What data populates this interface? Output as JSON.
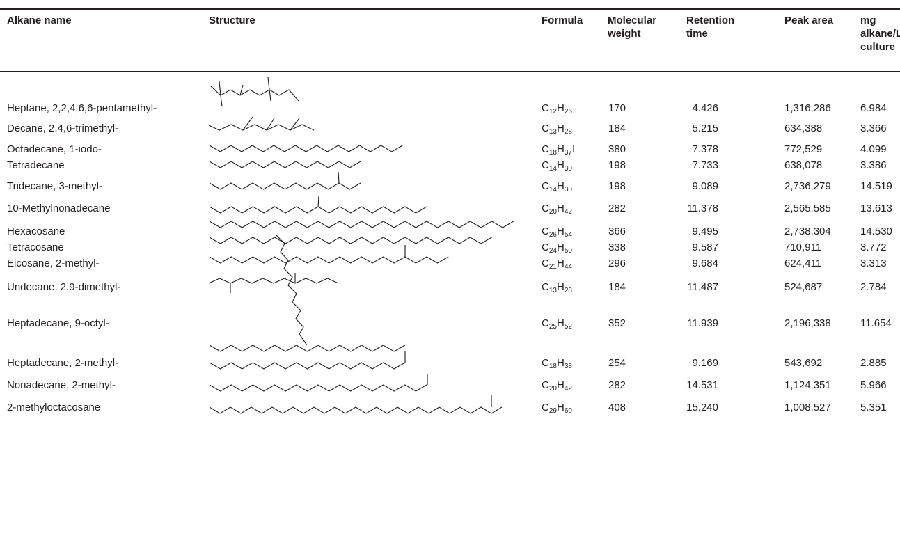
{
  "table": {
    "headers": {
      "alkane_name": "Alkane name",
      "structure": "Structure",
      "formula": "Formula",
      "molecular_weight": [
        "Molecular",
        "weight"
      ],
      "retention_time": [
        "Retention",
        "time"
      ],
      "peak_area": "Peak area",
      "mg_alkane": [
        "mg",
        "alkane/L",
        "culture"
      ]
    },
    "rows": [
      {
        "name": "Heptane, 2,2,4,6,6-pentamethyl-",
        "formula": [
          [
            "C",
            "12"
          ],
          [
            "H",
            "26"
          ]
        ],
        "mw": "170",
        "rt": "4.426",
        "area": "1,316,286",
        "mg": "6.984"
      },
      {
        "name": "Decane, 2,4,6-trimethyl-",
        "formula": [
          [
            "C",
            "13"
          ],
          [
            "H",
            "28"
          ]
        ],
        "mw": "184",
        "rt": "5.215",
        "area": "634,388",
        "mg": "3.366"
      },
      {
        "name": "Octadecane, 1-iodo-",
        "formula": [
          [
            "C",
            "18"
          ],
          [
            "H",
            "37"
          ],
          [
            "I",
            ""
          ]
        ],
        "mw": "380",
        "rt": "7.378",
        "area": "772,529",
        "mg": "4.099"
      },
      {
        "name": "Tetradecane",
        "formula": [
          [
            "C",
            "14"
          ],
          [
            "H",
            "30"
          ]
        ],
        "mw": "198",
        "rt": "7.733",
        "area": "638,078",
        "mg": "3.386"
      },
      {
        "name": "Tridecane, 3-methyl-",
        "formula": [
          [
            "C",
            "14"
          ],
          [
            "H",
            "30"
          ]
        ],
        "mw": "198",
        "rt": "9.089",
        "area": "2,736,279",
        "mg": "14.519"
      },
      {
        "name": "10-Methylnonadecane",
        "formula": [
          [
            "C",
            "20"
          ],
          [
            "H",
            "42"
          ]
        ],
        "mw": "282",
        "rt": "11.378",
        "area": "2,565,585",
        "mg": "13.613"
      },
      {
        "name": "Hexacosane",
        "formula": [
          [
            "C",
            "26"
          ],
          [
            "H",
            "54"
          ]
        ],
        "mw": "366",
        "rt": "9.495",
        "area": "2,738,304",
        "mg": "14.530"
      },
      {
        "name": "Tetracosane",
        "formula": [
          [
            "C",
            "24"
          ],
          [
            "H",
            "50"
          ]
        ],
        "mw": "338",
        "rt": "9.587",
        "area": "710,911",
        "mg": "3.772"
      },
      {
        "name": "Eicosane, 2-methyl-",
        "formula": [
          [
            "C",
            "21"
          ],
          [
            "H",
            "44"
          ]
        ],
        "mw": "296",
        "rt": "9.684",
        "area": "624,411",
        "mg": "3.313"
      },
      {
        "name": "Undecane, 2,9-dimethyl-",
        "formula": [
          [
            "C",
            "13"
          ],
          [
            "H",
            "28"
          ]
        ],
        "mw": "184",
        "rt": "11.487",
        "area": "524,687",
        "mg": "2.784"
      },
      {
        "name": "Heptadecane, 9-octyl-",
        "formula": [
          [
            "C",
            "25"
          ],
          [
            "H",
            "52"
          ]
        ],
        "mw": "352",
        "rt": "11.939",
        "area": "2,196,338",
        "mg": "11.654"
      },
      {
        "name": "Heptadecane, 2-methyl-",
        "formula": [
          [
            "C",
            "18"
          ],
          [
            "H",
            "38"
          ]
        ],
        "mw": "254",
        "rt": "9.169",
        "area": "543,692",
        "mg": "2.885"
      },
      {
        "name": "Nonadecane, 2-methyl-",
        "formula": [
          [
            "C",
            "20"
          ],
          [
            "H",
            "42"
          ]
        ],
        "mw": "282",
        "rt": "14.531",
        "area": "1,124,351",
        "mg": "5.966"
      },
      {
        "name": "2-methyloctacosane",
        "formula": [
          [
            "C",
            "29"
          ],
          [
            "H",
            "60"
          ]
        ],
        "mw": "408",
        "rt": "15.240",
        "area": "1,008,527",
        "mg": "5.351"
      }
    ]
  }
}
